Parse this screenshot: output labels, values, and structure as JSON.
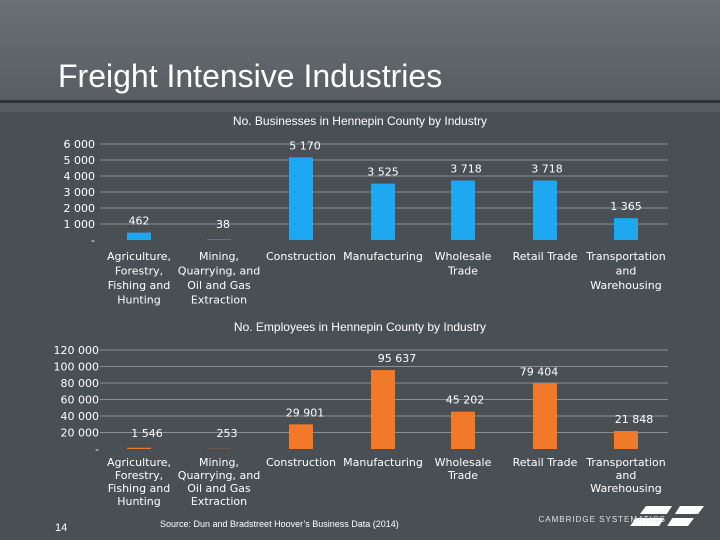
{
  "slide": {
    "title": "Freight Intensive Industries",
    "page_number": "14",
    "source": "Source: Dun and Bradstreet Hoover’s Business Data (2014)",
    "logo_text": "CAMBRIDGE SYSTEMATICS"
  },
  "colors": {
    "businesses": "#1da7f0",
    "employees": "#f07a2a",
    "grid": "#8a8f94"
  },
  "chart_data": [
    {
      "type": "bar",
      "title": "No. Businesses in Hennepin County by Industry",
      "categories": [
        [
          "Agriculture,",
          "Forestry,",
          "Fishing and",
          "Hunting"
        ],
        [
          "Mining,",
          "Quarrying, and",
          "Oil and Gas",
          "Extraction"
        ],
        [
          "Construction"
        ],
        [
          "Manufacturing"
        ],
        [
          "Wholesale",
          "Trade"
        ],
        [
          "Retail Trade"
        ],
        [
          "Transportation",
          "and",
          "Warehousing"
        ]
      ],
      "values": [
        462,
        38,
        5170,
        3525,
        3718,
        3718,
        1365
      ],
      "labels": [
        "462",
        "38",
        "5 170",
        "3 525",
        "3 718",
        "3 718",
        "1 365"
      ],
      "yticks": [
        "-",
        "1 000",
        "2 000",
        "3 000",
        "4 000",
        "5 000",
        "6 000"
      ],
      "ylim": [
        0,
        6000
      ],
      "grid": true
    },
    {
      "type": "bar",
      "title": "No. Employees in Hennepin County by Industry",
      "categories": [
        [
          "Agriculture,",
          "Forestry,",
          "Fishing and",
          "Hunting"
        ],
        [
          "Mining,",
          "Quarrying, and",
          "Oil and Gas",
          "Extraction"
        ],
        [
          "Construction"
        ],
        [
          "Manufacturing"
        ],
        [
          "Wholesale",
          "Trade"
        ],
        [
          "Retail Trade"
        ],
        [
          "Transportation",
          "and",
          "Warehousing"
        ]
      ],
      "values": [
        1546,
        253,
        29901,
        95637,
        45202,
        79404,
        21848
      ],
      "labels": [
        "1 546",
        "253",
        "29 901",
        "95 637",
        "45 202",
        "79 404",
        "21 848"
      ],
      "yticks": [
        "-",
        "20 000",
        "40 000",
        "60 000",
        "80 000",
        "100 000",
        "120 000"
      ],
      "ylim": [
        0,
        120000
      ],
      "grid": true
    }
  ]
}
